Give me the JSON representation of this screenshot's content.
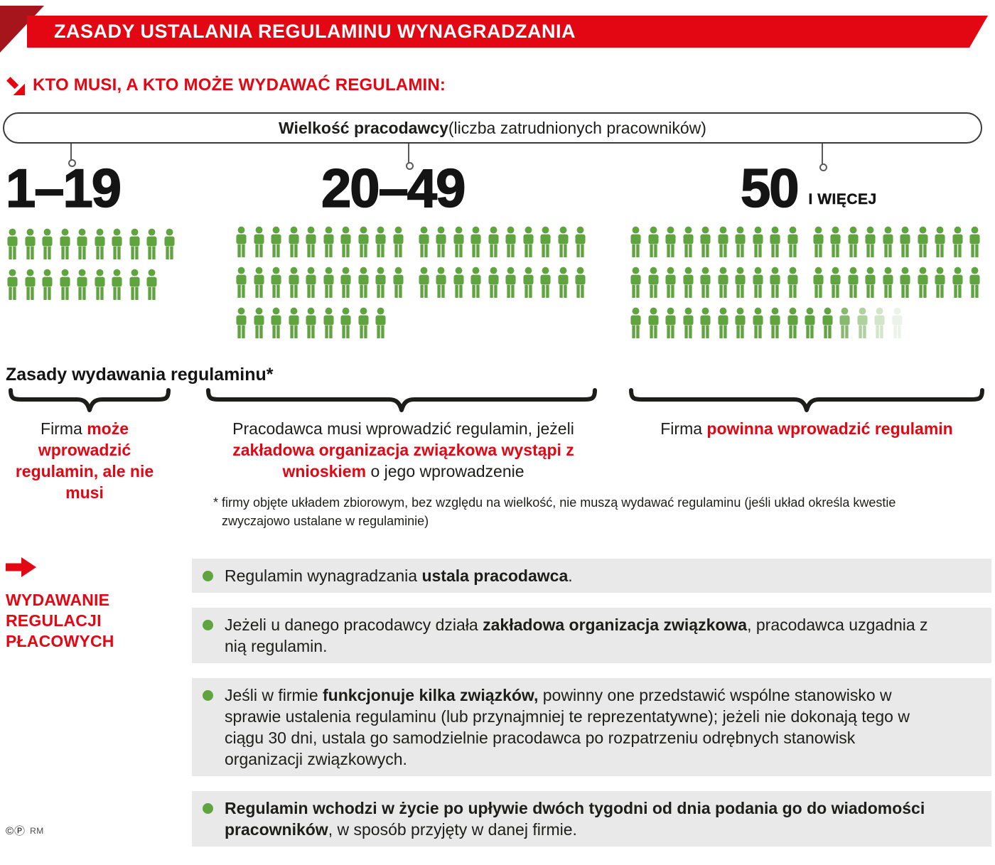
{
  "colors": {
    "red": "#e30613",
    "dark_red": "#a6151b",
    "green": "#60a440",
    "gray_box": "#e9e9e9",
    "text": "#1d1d1b"
  },
  "header": {
    "title": "ZASADY USTALANIA REGULAMINU WYNAGRADZANIA"
  },
  "who": {
    "heading": "KTO MUSI, A KTO MOŻE WYDAWAĆ REGULAMIN:",
    "pill_bold": "Wielkość pracodawcy",
    "pill_rest": " (liczba zatrudnionych pracowników)"
  },
  "rules_heading": "Zasady wydawania regulaminu*",
  "columns": [
    {
      "range_label": "1–19",
      "suffix": "",
      "people_rows": [
        {
          "groups": [
            10
          ]
        },
        {
          "groups": [
            9
          ]
        }
      ],
      "note": [
        {
          "t": "Firma "
        },
        {
          "t": "może wprowadzić regulamin, ale nie musi",
          "c": "rb"
        }
      ]
    },
    {
      "range_label": "20–49",
      "suffix": "",
      "people_rows": [
        {
          "groups": [
            10,
            10
          ]
        },
        {
          "groups": [
            10,
            10
          ]
        },
        {
          "groups": [
            9
          ]
        }
      ],
      "note": [
        {
          "t": "Pracodawca musi wprowadzić regulamin, jeżeli "
        },
        {
          "t": "zakładowa organizacja związkowa wystąpi z wnioskiem",
          "c": "rb"
        },
        {
          "t": " o jego wprowadzenie"
        }
      ]
    },
    {
      "range_label": "50",
      "suffix": "I WIĘCEJ",
      "people_rows": [
        {
          "groups": [
            10,
            10
          ]
        },
        {
          "groups": [
            10,
            10
          ]
        },
        {
          "groups": [
            16
          ],
          "fade_tail": [
            0.75,
            0.5,
            0.28,
            0.12
          ]
        }
      ],
      "note": [
        {
          "t": "Firma "
        },
        {
          "t": "powinna wprowadzić regulamin",
          "c": "rb"
        }
      ]
    }
  ],
  "footnote": "* firmy objęte układem zbiorowym, bez względu na wielkość, nie muszą wydawać regulaminu (jeśli układ określa kwestie zwyczajowo ustalane w regulaminie)",
  "issuing": {
    "label_lines": [
      "WYDAWANIE",
      "REGULACJI",
      "PŁACOWYCH"
    ],
    "items": [
      [
        {
          "t": "Regulamin wynagradzania "
        },
        {
          "t": "ustala pracodawca",
          "c": "b"
        },
        {
          "t": "."
        }
      ],
      [
        {
          "t": "Jeżeli u danego pracodawcy działa "
        },
        {
          "t": "zakładowa organizacja związkowa",
          "c": "b"
        },
        {
          "t": ", pracodawca uzgadnia z nią regulamin."
        }
      ],
      [
        {
          "t": "Jeśli w firmie "
        },
        {
          "t": "funkcjonuje kilka związków,",
          "c": "b"
        },
        {
          "t": " powinny one przedstawić wspólne stanowisko w sprawie ustalenia regulaminu (lub przynajmniej te reprezentatywne); jeżeli nie dokonają tego w ciągu 30 dni, ustala go samodzielnie pracodawca po rozpatrzeniu odrębnych stanowisk organizacji związkowych."
        }
      ],
      [
        {
          "t": "Regulamin wchodzi w życie po upływie dwóch tygodni od dnia podania go do wiadomości pracowników",
          "c": "b"
        },
        {
          "t": ", w sposób przyjęty w danej firmie."
        }
      ]
    ]
  },
  "footer": {
    "copyright": "©Ⓟ",
    "credit": "RM"
  }
}
